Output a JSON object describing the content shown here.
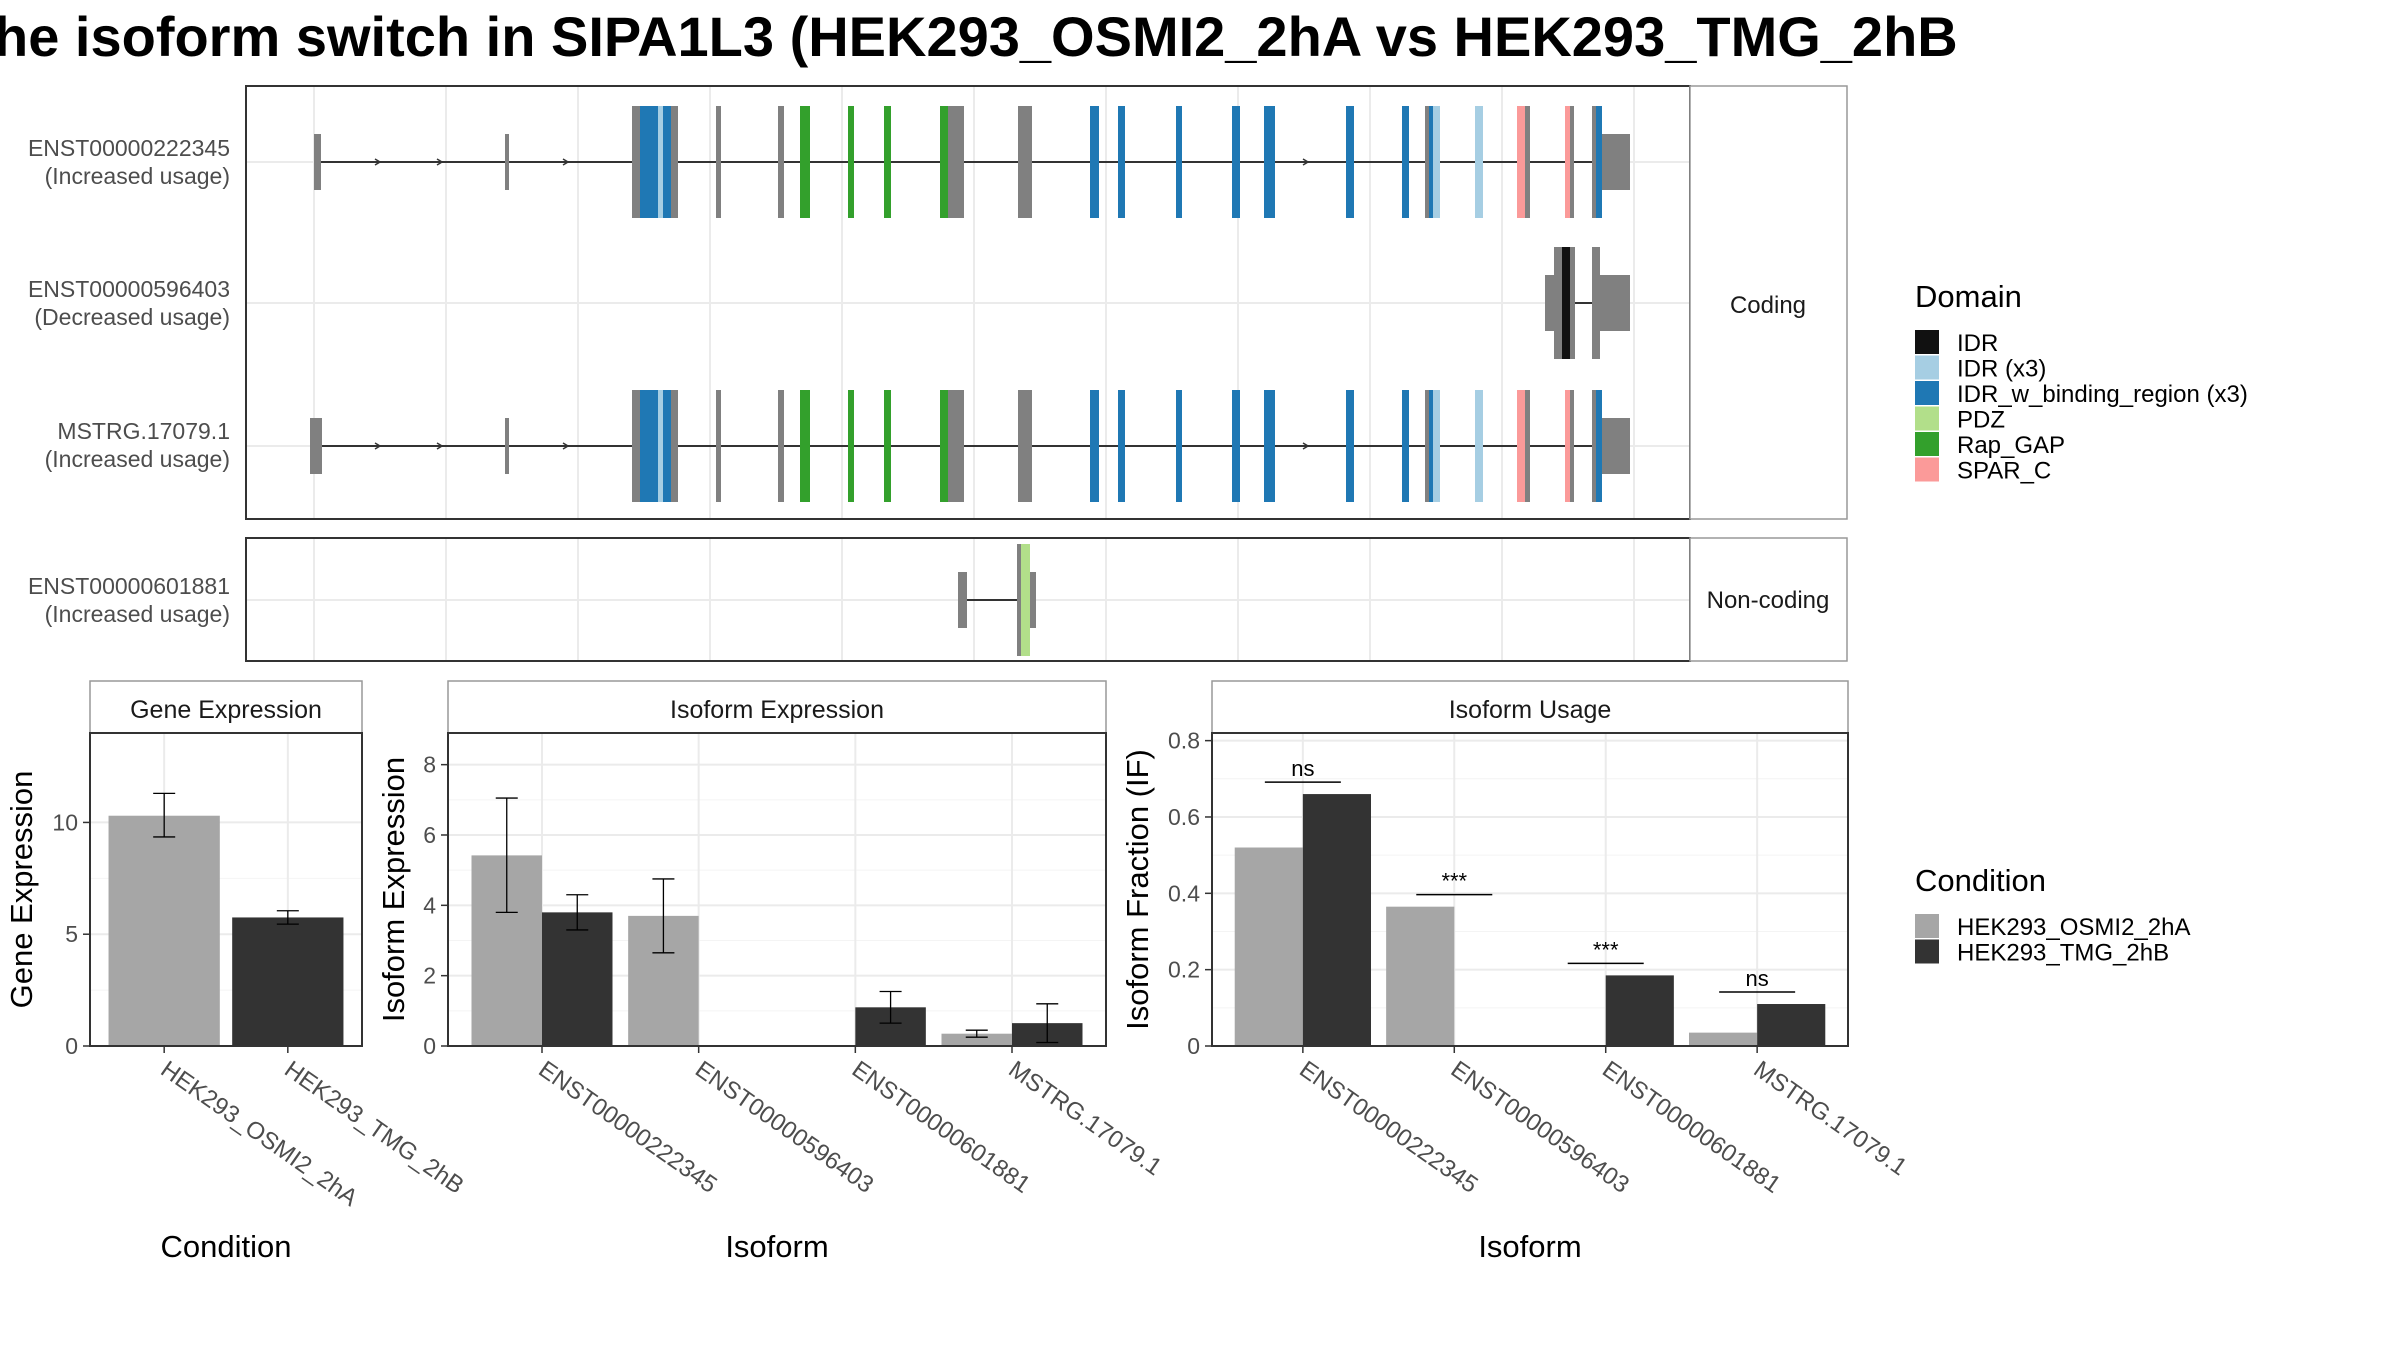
{
  "title": "he isoform switch in SIPA1L3 (HEK293_OSMI2_2hA vs HEK293_TMG_2hB",
  "colors": {
    "exon_default": "#808080",
    "intron": "#333333",
    "cond_a": "#a6a6a6",
    "cond_b": "#333333",
    "grid": "#ebebeb",
    "panel_border": "#333333",
    "strip_fill": "#ffffff",
    "strip_border": "#999999"
  },
  "domain_legend": {
    "title": "Domain",
    "items": [
      {
        "label": "IDR",
        "color": "#111111"
      },
      {
        "label": "IDR (x3)",
        "color": "#a6cee3"
      },
      {
        "label": "IDR_w_binding_region (x3)",
        "color": "#1f78b4"
      },
      {
        "label": "PDZ",
        "color": "#b2df8a"
      },
      {
        "label": "Rap_GAP",
        "color": "#33a02c"
      },
      {
        "label": "SPAR_C",
        "color": "#fb9a99"
      }
    ]
  },
  "condition_legend": {
    "title": "Condition",
    "items": [
      {
        "label": "HEK293_OSMI2_2hA",
        "color": "#a6a6a6"
      },
      {
        "label": "HEK293_TMG_2hB",
        "color": "#333333"
      }
    ]
  },
  "transcripts": {
    "coding_label": "Coding",
    "noncoding_label": "Non-coding",
    "coding": [
      {
        "id": "ENST00000222345",
        "usage": "(Increased usage)"
      },
      {
        "id": "ENST00000596403",
        "usage": "(Decreased usage)"
      },
      {
        "id": "MSTRG.17079.1",
        "usage": "(Increased usage)"
      }
    ],
    "noncoding": [
      {
        "id": "ENST00000601881",
        "usage": "(Increased usage)"
      }
    ]
  },
  "chart_data": [
    {
      "type": "bar",
      "panel": "Gene Expression",
      "categories": [
        "HEK293_OSMI2_2hA",
        "HEK293_TMG_2hB"
      ],
      "values": [
        10.3,
        5.75
      ],
      "errors": [
        [
          9.35,
          11.3
        ],
        [
          5.45,
          6.05
        ]
      ],
      "xlabel": "Condition",
      "ylabel": "Gene Expression",
      "ylim": [
        0,
        14
      ],
      "yticks": [
        0,
        5,
        10
      ],
      "legend": "none"
    },
    {
      "type": "bar",
      "panel": "Isoform Expression",
      "categories": [
        "ENST00000222345",
        "ENST00000596403",
        "ENST00000601881",
        "MSTRG.17079.1"
      ],
      "series": [
        {
          "name": "HEK293_OSMI2_2hA",
          "values": [
            5.42,
            3.7,
            0,
            0.35
          ],
          "errors": [
            [
              3.8,
              7.05
            ],
            [
              2.65,
              4.75
            ],
            [
              0,
              0
            ],
            [
              0.25,
              0.45
            ]
          ]
        },
        {
          "name": "HEK293_TMG_2hB",
          "values": [
            3.8,
            0,
            1.1,
            0.65
          ],
          "errors": [
            [
              3.3,
              4.3
            ],
            [
              0,
              0
            ],
            [
              0.65,
              1.55
            ],
            [
              0.1,
              1.2
            ]
          ]
        }
      ],
      "xlabel": "Isoform",
      "ylabel": "Isoform Expression",
      "ylim": [
        0,
        8.9
      ],
      "yticks": [
        0,
        2,
        4,
        6,
        8
      ]
    },
    {
      "type": "bar",
      "panel": "Isoform Usage",
      "categories": [
        "ENST00000222345",
        "ENST00000596403",
        "ENST00000601881",
        "MSTRG.17079.1"
      ],
      "series": [
        {
          "name": "HEK293_OSMI2_2hA",
          "values": [
            0.52,
            0.365,
            0,
            0.035
          ]
        },
        {
          "name": "HEK293_TMG_2hB",
          "values": [
            0.66,
            0,
            0.185,
            0.11
          ]
        }
      ],
      "significance": [
        "ns",
        "***",
        "***",
        "ns"
      ],
      "xlabel": "Isoform",
      "ylabel": "Isoform Fraction (IF)",
      "ylim": [
        0,
        0.82
      ],
      "yticks": [
        0,
        0.2,
        0.4,
        0.6,
        0.8
      ]
    }
  ]
}
